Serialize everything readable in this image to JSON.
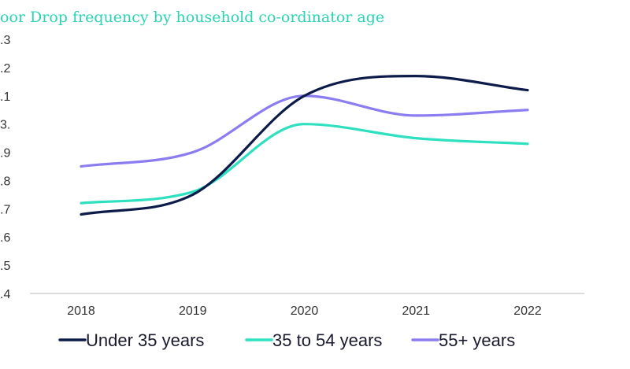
{
  "chart_data": {
    "type": "line",
    "title": "oor Drop frequency by household co-ordinator age",
    "xlabel": "",
    "ylabel": "",
    "categories": [
      "2018",
      "2019",
      "2020",
      "2021",
      "2022"
    ],
    "y_tick_labels": [
      ".4",
      ".5",
      ".6",
      ".7",
      ".8",
      ".9",
      "3.",
      ".1",
      ".2",
      ".3"
    ],
    "ylim": [
      2.4,
      3.3
    ],
    "grid": false,
    "legend_position": "bottom",
    "series": [
      {
        "name": "Under 35 years",
        "color": "#0d1b4a",
        "values": [
          2.68,
          2.75,
          3.1,
          3.17,
          3.12
        ]
      },
      {
        "name": "35 to 54 years",
        "color": "#2ee0bf",
        "values": [
          2.72,
          2.76,
          3.0,
          2.95,
          2.93
        ]
      },
      {
        "name": "55+ years",
        "color": "#8b7cf0",
        "values": [
          2.85,
          2.9,
          3.1,
          3.03,
          3.05
        ]
      }
    ]
  }
}
